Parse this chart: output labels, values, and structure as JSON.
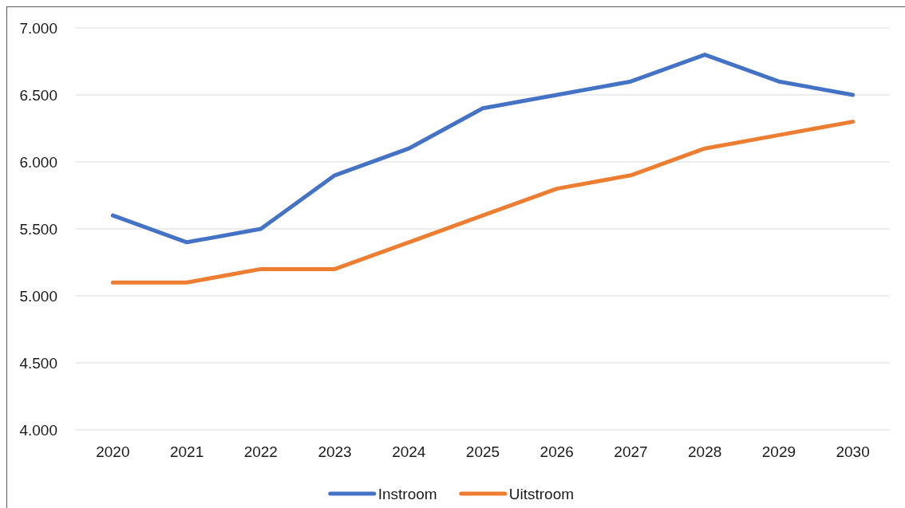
{
  "chart_data": {
    "type": "line",
    "categories": [
      "2020",
      "2021",
      "2022",
      "2023",
      "2024",
      "2025",
      "2026",
      "2027",
      "2028",
      "2029",
      "2030"
    ],
    "series": [
      {
        "name": "Instroom",
        "color": "#4472c4",
        "values": [
          5600,
          5400,
          5500,
          5900,
          6100,
          6400,
          6500,
          6600,
          6800,
          6600,
          6500
        ]
      },
      {
        "name": "Uitstroom",
        "color": "#ed7d31",
        "values": [
          5100,
          5100,
          5200,
          5200,
          5400,
          5600,
          5800,
          5900,
          6100,
          6200,
          6300
        ]
      }
    ],
    "ylim": [
      4000,
      7000
    ],
    "yticks": [
      {
        "value": 4000,
        "label": "4.000"
      },
      {
        "value": 4500,
        "label": "4.500"
      },
      {
        "value": 5000,
        "label": "5.000"
      },
      {
        "value": 5500,
        "label": "5.500"
      },
      {
        "value": 6000,
        "label": "6.000"
      },
      {
        "value": 6500,
        "label": "6.500"
      },
      {
        "value": 7000,
        "label": "7.000"
      }
    ],
    "grid": "y",
    "legend": "bottom",
    "marker": "none",
    "line_style": "solid"
  }
}
